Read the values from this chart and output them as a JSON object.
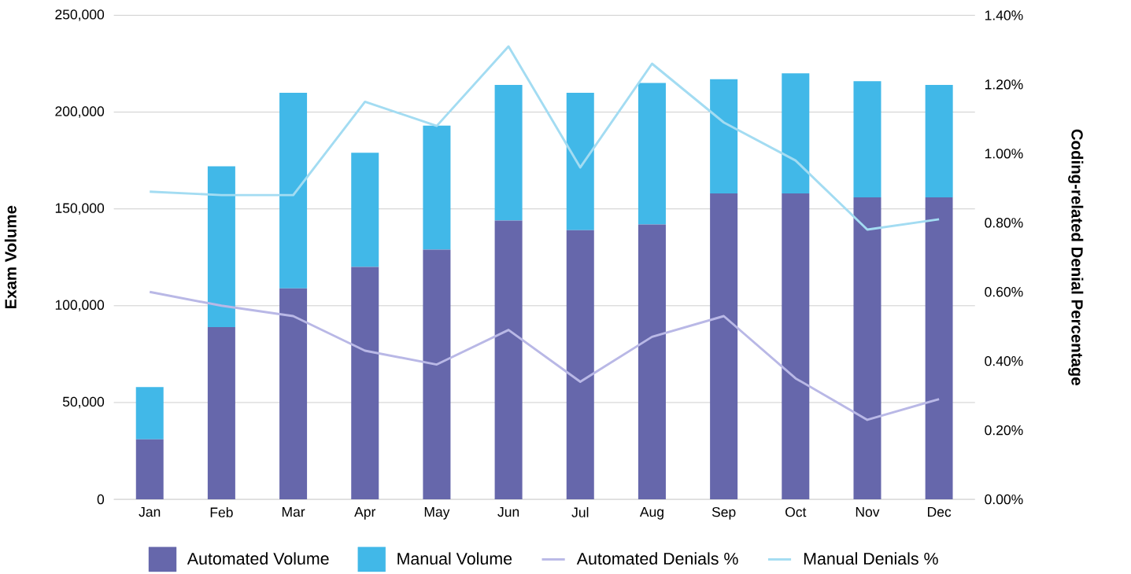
{
  "chart_data": {
    "type": "bar",
    "stacked": true,
    "categories": [
      "Jan",
      "Feb",
      "Mar",
      "Apr",
      "May",
      "Jun",
      "Jul",
      "Aug",
      "Sep",
      "Oct",
      "Nov",
      "Dec"
    ],
    "series": [
      {
        "name": "Automated Volume",
        "color": "#6667ab",
        "values": [
          31000,
          89000,
          109000,
          120000,
          129000,
          144000,
          139000,
          142000,
          158000,
          158000,
          156000,
          156000
        ]
      },
      {
        "name": "Manual Volume",
        "color": "#41b8e8",
        "values": [
          27000,
          83000,
          101000,
          59000,
          64000,
          70000,
          71000,
          73000,
          59000,
          62000,
          60000,
          58000
        ]
      },
      {
        "name": "Automated Denials %",
        "type": "line",
        "axis": "y2",
        "color": "#b9b8e6",
        "values": [
          0.6,
          0.56,
          0.53,
          0.43,
          0.39,
          0.49,
          0.34,
          0.47,
          0.53,
          0.35,
          0.23,
          0.29
        ]
      },
      {
        "name": "Manual Denials %",
        "type": "line",
        "axis": "y2",
        "color": "#a3dcf2",
        "values": [
          0.89,
          0.88,
          0.88,
          1.15,
          1.08,
          1.31,
          0.96,
          1.26,
          1.09,
          0.98,
          0.78,
          0.81
        ]
      }
    ],
    "ylabel": "Exam Volume",
    "y2label": "Coding-related Denial Percentage",
    "ylim": [
      0,
      250000
    ],
    "yticks": [
      {
        "value": 0,
        "label": "0"
      },
      {
        "value": 50000,
        "label": "50,000"
      },
      {
        "value": 100000,
        "label": "100,000"
      },
      {
        "value": 150000,
        "label": "150,000"
      },
      {
        "value": 200000,
        "label": "200,000"
      },
      {
        "value": 250000,
        "label": "250,000"
      }
    ],
    "y2lim": [
      0,
      1.4
    ],
    "y2ticks": [
      {
        "value": 0,
        "label": "0.00%"
      },
      {
        "value": 0.2,
        "label": "0.20%"
      },
      {
        "value": 0.4,
        "label": "0.40%"
      },
      {
        "value": 0.6,
        "label": "0.60%"
      },
      {
        "value": 0.8,
        "label": "0.80%"
      },
      {
        "value": 1.0,
        "label": "1.00%"
      },
      {
        "value": 1.2,
        "label": "1.20%"
      },
      {
        "value": 1.4,
        "label": "1.40%"
      }
    ],
    "grid": "y",
    "legend": "bottom",
    "marker": "none",
    "line_style": "solid"
  }
}
